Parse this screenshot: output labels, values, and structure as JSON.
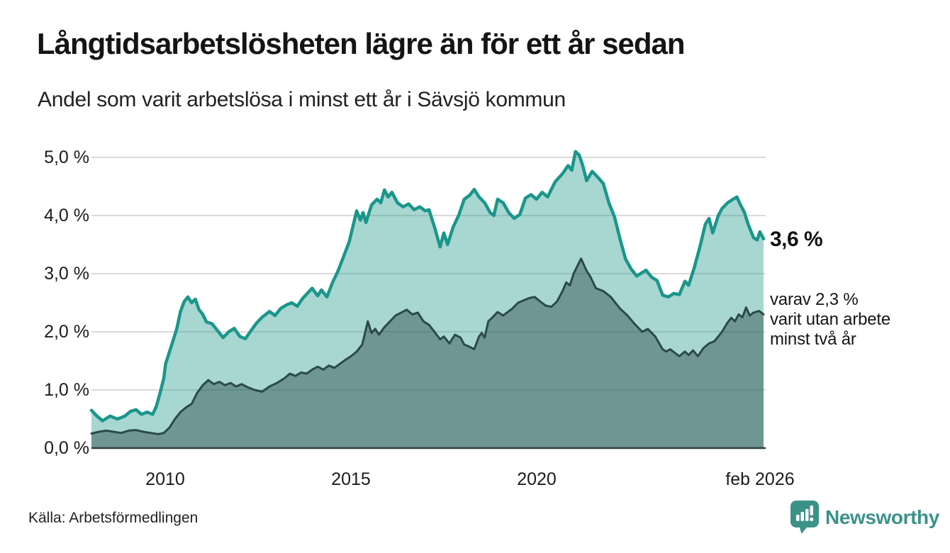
{
  "header": {
    "title": "Långtidsarbetslösheten lägre än för ett år sedan",
    "subtitle": "Andel som varit arbetslösa i minst ett år i Sävsjö kommun"
  },
  "axes": {
    "y": {
      "labels": [
        "5,0 %",
        "4,0 %",
        "3,0 %",
        "2,0 %",
        "1,0 %",
        "0,0 %"
      ]
    },
    "x": {
      "labels": [
        "2010",
        "2015",
        "2020",
        "feb 2026"
      ]
    }
  },
  "annotations": {
    "latest_total": "3,6 %",
    "varav_lines": [
      "varav 2,3 %",
      "varit utan arbete",
      "minst två år"
    ]
  },
  "footer": {
    "source": "Källa: Arbetsförmedlingen",
    "logo_text": "Newsworthy"
  },
  "colors": {
    "accent_teal": "#1A968B",
    "light_fill": "#A9D6D0",
    "dark_line": "#2B4A46",
    "dark_fill": "#6F9B93",
    "gridline": "#DADADA",
    "axis_line": "#2F3D3A",
    "logo_teal": "#3B9289"
  },
  "chart_data": {
    "type": "area",
    "title": "Långtidsarbetslösheten lägre än för ett år sedan",
    "subtitle": "Andel som varit arbetslösa i minst ett år i Sävsjö kommun",
    "source": "Källa: Arbetsförmedlingen",
    "x_unit": "decimal year (monthly data)",
    "y_unit": "percent",
    "xlim": [
      2008.0,
      2026.12
    ],
    "ylim": [
      0,
      5.1
    ],
    "yticks": [
      0,
      1,
      2,
      3,
      4,
      5
    ],
    "xticks": [
      {
        "value": 2010.0,
        "label": "2010"
      },
      {
        "value": 2015.0,
        "label": "2015"
      },
      {
        "value": 2020.0,
        "label": "2020"
      },
      {
        "value": 2026.0,
        "label": "feb 2026"
      }
    ],
    "grid": "horizontal",
    "legend_position": "right-annotations",
    "series": [
      {
        "name": "Arbetslösa minst ett år",
        "annotation": "3,6 %",
        "latest_value": 3.6,
        "line_color": "#1A968B",
        "line_width": 4.5,
        "fill_color": "#2F9E92",
        "fill_opacity": 0.42,
        "points": [
          [
            2008.0,
            0.65
          ],
          [
            2008.15,
            0.55
          ],
          [
            2008.3,
            0.47
          ],
          [
            2008.5,
            0.55
          ],
          [
            2008.7,
            0.5
          ],
          [
            2008.9,
            0.55
          ],
          [
            2009.05,
            0.63
          ],
          [
            2009.2,
            0.66
          ],
          [
            2009.35,
            0.58
          ],
          [
            2009.5,
            0.62
          ],
          [
            2009.65,
            0.58
          ],
          [
            2009.75,
            0.72
          ],
          [
            2009.85,
            0.95
          ],
          [
            2009.95,
            1.2
          ],
          [
            2010.0,
            1.45
          ],
          [
            2010.1,
            1.65
          ],
          [
            2010.2,
            1.85
          ],
          [
            2010.3,
            2.05
          ],
          [
            2010.4,
            2.35
          ],
          [
            2010.5,
            2.52
          ],
          [
            2010.6,
            2.6
          ],
          [
            2010.7,
            2.5
          ],
          [
            2010.8,
            2.56
          ],
          [
            2010.9,
            2.38
          ],
          [
            2011.0,
            2.3
          ],
          [
            2011.1,
            2.17
          ],
          [
            2011.25,
            2.14
          ],
          [
            2011.4,
            2.02
          ],
          [
            2011.55,
            1.9
          ],
          [
            2011.7,
            2.0
          ],
          [
            2011.85,
            2.06
          ],
          [
            2012.0,
            1.92
          ],
          [
            2012.15,
            1.88
          ],
          [
            2012.3,
            2.02
          ],
          [
            2012.45,
            2.15
          ],
          [
            2012.6,
            2.25
          ],
          [
            2012.8,
            2.35
          ],
          [
            2012.95,
            2.28
          ],
          [
            2013.1,
            2.4
          ],
          [
            2013.25,
            2.46
          ],
          [
            2013.4,
            2.5
          ],
          [
            2013.55,
            2.44
          ],
          [
            2013.7,
            2.58
          ],
          [
            2013.85,
            2.68
          ],
          [
            2013.95,
            2.75
          ],
          [
            2014.1,
            2.62
          ],
          [
            2014.2,
            2.72
          ],
          [
            2014.35,
            2.6
          ],
          [
            2014.5,
            2.85
          ],
          [
            2014.65,
            3.05
          ],
          [
            2014.8,
            3.3
          ],
          [
            2014.95,
            3.55
          ],
          [
            2015.1,
            3.95
          ],
          [
            2015.15,
            4.08
          ],
          [
            2015.25,
            3.92
          ],
          [
            2015.32,
            4.05
          ],
          [
            2015.4,
            3.88
          ],
          [
            2015.55,
            4.18
          ],
          [
            2015.7,
            4.28
          ],
          [
            2015.8,
            4.22
          ],
          [
            2015.9,
            4.44
          ],
          [
            2016.0,
            4.32
          ],
          [
            2016.1,
            4.4
          ],
          [
            2016.25,
            4.22
          ],
          [
            2016.4,
            4.15
          ],
          [
            2016.55,
            4.2
          ],
          [
            2016.7,
            4.1
          ],
          [
            2016.85,
            4.15
          ],
          [
            2017.0,
            4.08
          ],
          [
            2017.1,
            4.1
          ],
          [
            2017.25,
            3.8
          ],
          [
            2017.4,
            3.46
          ],
          [
            2017.5,
            3.7
          ],
          [
            2017.6,
            3.5
          ],
          [
            2017.75,
            3.8
          ],
          [
            2017.9,
            4.0
          ],
          [
            2018.05,
            4.28
          ],
          [
            2018.2,
            4.35
          ],
          [
            2018.32,
            4.45
          ],
          [
            2018.45,
            4.32
          ],
          [
            2018.6,
            4.22
          ],
          [
            2018.75,
            4.05
          ],
          [
            2018.85,
            4.0
          ],
          [
            2018.95,
            4.28
          ],
          [
            2019.1,
            4.22
          ],
          [
            2019.25,
            4.05
          ],
          [
            2019.4,
            3.95
          ],
          [
            2019.55,
            4.02
          ],
          [
            2019.7,
            4.3
          ],
          [
            2019.85,
            4.36
          ],
          [
            2020.0,
            4.28
          ],
          [
            2020.15,
            4.4
          ],
          [
            2020.3,
            4.32
          ],
          [
            2020.5,
            4.58
          ],
          [
            2020.7,
            4.72
          ],
          [
            2020.85,
            4.86
          ],
          [
            2020.95,
            4.78
          ],
          [
            2021.05,
            5.1
          ],
          [
            2021.15,
            5.04
          ],
          [
            2021.25,
            4.85
          ],
          [
            2021.35,
            4.6
          ],
          [
            2021.5,
            4.76
          ],
          [
            2021.65,
            4.66
          ],
          [
            2021.8,
            4.55
          ],
          [
            2021.95,
            4.22
          ],
          [
            2022.1,
            3.98
          ],
          [
            2022.25,
            3.6
          ],
          [
            2022.4,
            3.25
          ],
          [
            2022.55,
            3.08
          ],
          [
            2022.7,
            2.96
          ],
          [
            2022.85,
            3.02
          ],
          [
            2022.95,
            3.06
          ],
          [
            2023.1,
            2.94
          ],
          [
            2023.25,
            2.88
          ],
          [
            2023.4,
            2.63
          ],
          [
            2023.55,
            2.6
          ],
          [
            2023.7,
            2.66
          ],
          [
            2023.85,
            2.64
          ],
          [
            2024.0,
            2.87
          ],
          [
            2024.1,
            2.8
          ],
          [
            2024.25,
            3.1
          ],
          [
            2024.4,
            3.45
          ],
          [
            2024.55,
            3.85
          ],
          [
            2024.65,
            3.95
          ],
          [
            2024.75,
            3.7
          ],
          [
            2024.9,
            4.0
          ],
          [
            2025.0,
            4.12
          ],
          [
            2025.15,
            4.22
          ],
          [
            2025.3,
            4.28
          ],
          [
            2025.4,
            4.32
          ],
          [
            2025.5,
            4.18
          ],
          [
            2025.6,
            4.06
          ],
          [
            2025.7,
            3.86
          ],
          [
            2025.85,
            3.62
          ],
          [
            2025.95,
            3.58
          ],
          [
            2026.02,
            3.72
          ],
          [
            2026.12,
            3.6
          ]
        ]
      },
      {
        "name": "varav utan arbete minst två år",
        "annotation": "varav 2,3 % varit utan arbete minst två år",
        "latest_value": 2.3,
        "line_color": "#2B4A46",
        "line_width": 3,
        "fill_color": "#2F4F4B",
        "fill_opacity": 0.47,
        "points": [
          [
            2008.0,
            0.25
          ],
          [
            2008.2,
            0.28
          ],
          [
            2008.4,
            0.3
          ],
          [
            2008.6,
            0.28
          ],
          [
            2008.8,
            0.26
          ],
          [
            2009.0,
            0.3
          ],
          [
            2009.2,
            0.31
          ],
          [
            2009.4,
            0.28
          ],
          [
            2009.6,
            0.26
          ],
          [
            2009.8,
            0.24
          ],
          [
            2009.95,
            0.26
          ],
          [
            2010.1,
            0.35
          ],
          [
            2010.25,
            0.5
          ],
          [
            2010.4,
            0.62
          ],
          [
            2010.55,
            0.7
          ],
          [
            2010.7,
            0.76
          ],
          [
            2010.85,
            0.95
          ],
          [
            2011.0,
            1.08
          ],
          [
            2011.15,
            1.17
          ],
          [
            2011.3,
            1.1
          ],
          [
            2011.45,
            1.14
          ],
          [
            2011.6,
            1.08
          ],
          [
            2011.75,
            1.12
          ],
          [
            2011.9,
            1.06
          ],
          [
            2012.05,
            1.1
          ],
          [
            2012.2,
            1.05
          ],
          [
            2012.4,
            1.0
          ],
          [
            2012.6,
            0.97
          ],
          [
            2012.8,
            1.06
          ],
          [
            2013.0,
            1.12
          ],
          [
            2013.2,
            1.2
          ],
          [
            2013.35,
            1.28
          ],
          [
            2013.5,
            1.24
          ],
          [
            2013.65,
            1.3
          ],
          [
            2013.8,
            1.28
          ],
          [
            2013.95,
            1.35
          ],
          [
            2014.1,
            1.4
          ],
          [
            2014.25,
            1.35
          ],
          [
            2014.4,
            1.42
          ],
          [
            2014.55,
            1.38
          ],
          [
            2014.7,
            1.45
          ],
          [
            2014.85,
            1.52
          ],
          [
            2015.0,
            1.58
          ],
          [
            2015.15,
            1.66
          ],
          [
            2015.3,
            1.78
          ],
          [
            2015.45,
            2.18
          ],
          [
            2015.55,
            1.98
          ],
          [
            2015.65,
            2.05
          ],
          [
            2015.75,
            1.95
          ],
          [
            2015.9,
            2.08
          ],
          [
            2016.05,
            2.18
          ],
          [
            2016.2,
            2.28
          ],
          [
            2016.35,
            2.33
          ],
          [
            2016.5,
            2.38
          ],
          [
            2016.65,
            2.3
          ],
          [
            2016.8,
            2.33
          ],
          [
            2016.95,
            2.18
          ],
          [
            2017.1,
            2.12
          ],
          [
            2017.25,
            2.0
          ],
          [
            2017.4,
            1.87
          ],
          [
            2017.5,
            1.92
          ],
          [
            2017.65,
            1.8
          ],
          [
            2017.8,
            1.95
          ],
          [
            2017.95,
            1.9
          ],
          [
            2018.05,
            1.78
          ],
          [
            2018.2,
            1.74
          ],
          [
            2018.32,
            1.7
          ],
          [
            2018.45,
            1.92
          ],
          [
            2018.52,
            1.98
          ],
          [
            2018.6,
            1.9
          ],
          [
            2018.7,
            2.18
          ],
          [
            2018.8,
            2.24
          ],
          [
            2018.95,
            2.34
          ],
          [
            2019.1,
            2.28
          ],
          [
            2019.2,
            2.33
          ],
          [
            2019.35,
            2.4
          ],
          [
            2019.5,
            2.5
          ],
          [
            2019.65,
            2.54
          ],
          [
            2019.8,
            2.58
          ],
          [
            2019.95,
            2.6
          ],
          [
            2020.1,
            2.52
          ],
          [
            2020.25,
            2.45
          ],
          [
            2020.4,
            2.43
          ],
          [
            2020.55,
            2.52
          ],
          [
            2020.7,
            2.7
          ],
          [
            2020.8,
            2.85
          ],
          [
            2020.9,
            2.8
          ],
          [
            2021.0,
            3.0
          ],
          [
            2021.2,
            3.26
          ],
          [
            2021.35,
            3.05
          ],
          [
            2021.45,
            2.95
          ],
          [
            2021.6,
            2.75
          ],
          [
            2021.8,
            2.7
          ],
          [
            2022.0,
            2.6
          ],
          [
            2022.25,
            2.4
          ],
          [
            2022.45,
            2.28
          ],
          [
            2022.65,
            2.13
          ],
          [
            2022.85,
            2.0
          ],
          [
            2023.0,
            2.05
          ],
          [
            2023.2,
            1.92
          ],
          [
            2023.4,
            1.7
          ],
          [
            2023.5,
            1.66
          ],
          [
            2023.6,
            1.7
          ],
          [
            2023.85,
            1.58
          ],
          [
            2024.0,
            1.66
          ],
          [
            2024.1,
            1.6
          ],
          [
            2024.22,
            1.68
          ],
          [
            2024.35,
            1.58
          ],
          [
            2024.5,
            1.72
          ],
          [
            2024.65,
            1.8
          ],
          [
            2024.8,
            1.84
          ],
          [
            2025.0,
            2.0
          ],
          [
            2025.15,
            2.16
          ],
          [
            2025.25,
            2.24
          ],
          [
            2025.35,
            2.18
          ],
          [
            2025.45,
            2.3
          ],
          [
            2025.55,
            2.25
          ],
          [
            2025.65,
            2.42
          ],
          [
            2025.75,
            2.28
          ],
          [
            2025.85,
            2.33
          ],
          [
            2026.0,
            2.36
          ],
          [
            2026.12,
            2.3
          ]
        ]
      }
    ]
  }
}
